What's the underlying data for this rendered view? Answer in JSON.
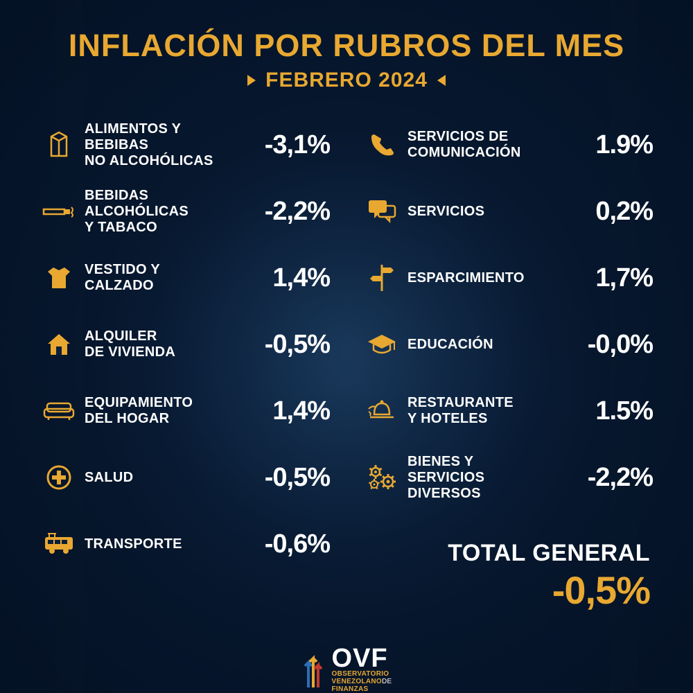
{
  "colors": {
    "accent": "#e8a831",
    "text": "#ffffff",
    "bg_inner": "#1a3a5c",
    "bg_outer": "#051225"
  },
  "header": {
    "title": "INFLACIÓN POR RUBROS DEL MES",
    "subtitle": "FEBRERO 2024"
  },
  "categories": {
    "left": [
      {
        "icon": "carton",
        "label": "ALIMENTOS Y BEBIBAS\nNO ALCOHÓLICAS",
        "value": "-3,1%"
      },
      {
        "icon": "cigarette",
        "label": "BEBIDAS ALCOHÓLICAS\nY TABACO",
        "value": "-2,2%"
      },
      {
        "icon": "shirt",
        "label": "VESTIDO Y\nCALZADO",
        "value": "1,4%"
      },
      {
        "icon": "house",
        "label": "ALQUILER\nDE VIVIENDA",
        "value": "-0,5%"
      },
      {
        "icon": "sofa",
        "label": "EQUIPAMIENTO\nDEL HOGAR",
        "value": "1,4%"
      },
      {
        "icon": "health",
        "label": "SALUD",
        "value": "-0,5%"
      },
      {
        "icon": "bus",
        "label": "TRANSPORTE",
        "value": "-0,6%"
      }
    ],
    "right": [
      {
        "icon": "phone",
        "label": "SERVICIOS DE\nCOMUNICACIÓN",
        "value": "1.9%"
      },
      {
        "icon": "chat",
        "label": "SERVICIOS",
        "value": "0,2%"
      },
      {
        "icon": "signpost",
        "label": "ESPARCIMIENTO",
        "value": "1,7%"
      },
      {
        "icon": "gradcap",
        "label": "EDUCACIÓN",
        "value": "-0,0%"
      },
      {
        "icon": "bell",
        "label": "RESTAURANTE\nY HOTELES",
        "value": "1.5%"
      },
      {
        "icon": "gears",
        "label": "BIENES Y\nSERVICIOS DIVERSOS",
        "value": "-2,2%"
      }
    ]
  },
  "total": {
    "label": "TOTAL\nGENERAL",
    "value": "-0,5%"
  },
  "footer": {
    "abbr": "OVF",
    "line1": "OBSERVATORIO",
    "line2_a": "VENEZOLANO",
    "line2_b": "DE",
    "line3": "FINANZAS"
  },
  "typography": {
    "title_fontsize": 45,
    "subtitle_fontsize": 30,
    "label_fontsize": 20,
    "value_fontsize": 38,
    "total_label_fontsize": 34,
    "total_value_fontsize": 56
  }
}
